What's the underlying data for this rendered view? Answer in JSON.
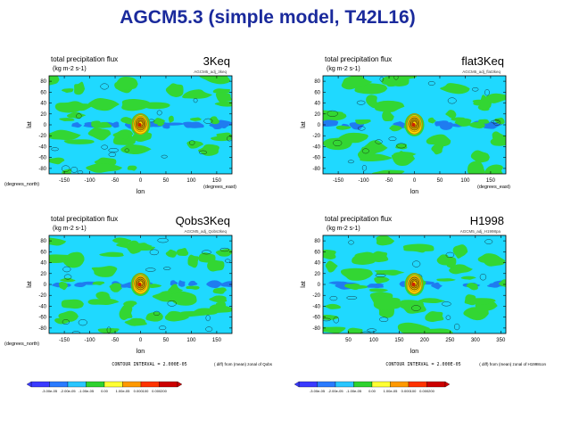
{
  "title": "AGCM5.3 (simple model, T42L16)",
  "colors": {
    "title": "#1a2a9c",
    "ocean": "#1fd9ff",
    "land": "#33d633",
    "band": "#1f7cf0",
    "peak": "#cc8800",
    "frame": "#000000"
  },
  "palette": [
    "#3a3aff",
    "#2a7bff",
    "#29c6ff",
    "#2ed22e",
    "#ffff33",
    "#ff9900",
    "#ff3300",
    "#cc0000"
  ],
  "colorbar_labels": [
    "-3.00e-05",
    "-2.00e-05",
    "-1.00e-05",
    "0.00",
    "1.00e-05",
    "0.000100",
    "0.000200"
  ],
  "chart_data": [
    {
      "type": "heatmap",
      "title": "total precipitation flux",
      "subtitle": "(kg m-2 s-1)",
      "case_label": "3Keq",
      "run_id": "AGCM5_adj_3keq",
      "xlabel": "lon",
      "ylabel": "lat",
      "x_unit": "(degrees_east)",
      "y_unit": "(degrees_north)",
      "xlim": [
        -180,
        180
      ],
      "ylim": [
        -90,
        90
      ],
      "x_ticks": [
        -150,
        -100,
        -50,
        0,
        50,
        100,
        150
      ],
      "y_ticks": [
        80,
        60,
        40,
        20,
        0,
        -20,
        -40,
        -60,
        -80
      ],
      "peak_lon": 0,
      "contour_interval": "",
      "note": ""
    },
    {
      "type": "heatmap",
      "title": "total precipitation flux",
      "subtitle": "(kg m-2 s-1)",
      "case_label": "flat3Keq",
      "run_id": "AGCM5_adj_flat3keq",
      "xlabel": "lon",
      "ylabel": "lat",
      "x_unit": "(degrees_east)",
      "y_unit": "",
      "xlim": [
        -180,
        180
      ],
      "ylim": [
        -90,
        90
      ],
      "x_ticks": [
        -150,
        -100,
        -50,
        0,
        50,
        100,
        150
      ],
      "y_ticks": [
        80,
        60,
        40,
        20,
        0,
        -20,
        -40,
        -60,
        -80
      ],
      "peak_lon": 0,
      "contour_interval": "",
      "note": ""
    },
    {
      "type": "heatmap",
      "title": "total precipitation flux",
      "subtitle": "(kg m-2 s-1)",
      "case_label": "Qobs3Keq",
      "run_id": "AGCM5_adj_Qobs3keq",
      "xlabel": "lon",
      "ylabel": "lat",
      "x_unit": "",
      "y_unit": "(degrees_north)",
      "xlim": [
        -180,
        180
      ],
      "ylim": [
        -90,
        90
      ],
      "x_ticks": [
        -150,
        -100,
        -50,
        0,
        50,
        100,
        150
      ],
      "y_ticks": [
        80,
        60,
        40,
        20,
        0,
        -20,
        -40,
        -60,
        -80
      ],
      "peak_lon": 0,
      "contour_interval": "CONTOUR INTERVAL = 2.000E-05",
      "note": "( diff) from (mean) zonal of Qobs"
    },
    {
      "type": "heatmap",
      "title": "total precipitation flux",
      "subtitle": "(kg m-2 s-1)",
      "case_label": "H1998",
      "run_id": "AGCM5_adj_H1998pa",
      "xlabel": "lon",
      "ylabel": "lat",
      "x_unit": "",
      "y_unit": "",
      "xlim": [
        0,
        360
      ],
      "ylim": [
        -90,
        90
      ],
      "x_ticks": [
        50,
        100,
        150,
        200,
        250,
        300,
        350
      ],
      "y_ticks": [
        80,
        60,
        40,
        20,
        0,
        -20,
        -40,
        -60,
        -80
      ],
      "peak_lon": 180,
      "contour_interval": "CONTOUR INTERVAL = 2.000E-05",
      "note": "( diff) from (mean) zonal of H1998con"
    }
  ]
}
